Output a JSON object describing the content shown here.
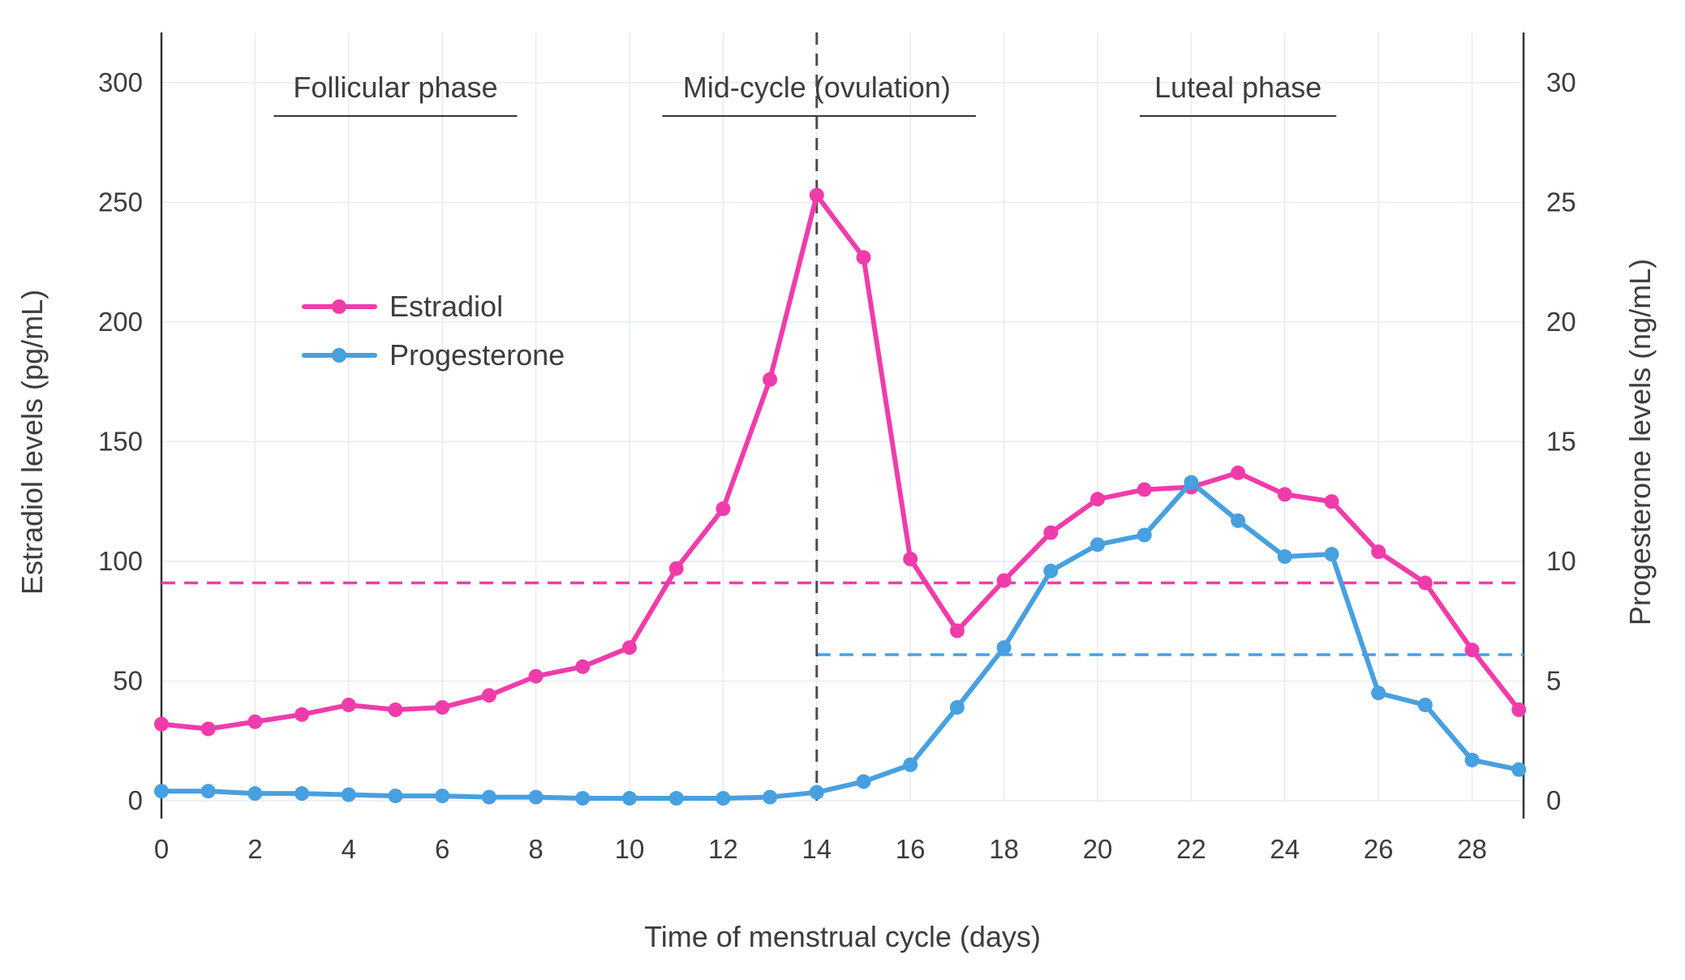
{
  "chart_data": {
    "type": "line",
    "title": "",
    "xlabel": "Time of menstrual cycle (days)",
    "ylabel_left": "Estradiol levels (pg/mL)",
    "ylabel_right": "Progesterone levels (ng/mL)",
    "x": [
      0,
      1,
      2,
      3,
      4,
      5,
      6,
      7,
      8,
      9,
      10,
      11,
      12,
      13,
      14,
      15,
      16,
      17,
      18,
      19,
      20,
      21,
      22,
      23,
      24,
      25,
      26,
      27,
      28,
      29
    ],
    "xlim": [
      0,
      29.1
    ],
    "x_ticks": [
      0,
      2,
      4,
      6,
      8,
      10,
      12,
      14,
      16,
      18,
      20,
      22,
      24,
      26,
      28
    ],
    "ylim_left": [
      0,
      321
    ],
    "y_ticks_left": [
      0,
      50,
      100,
      150,
      200,
      250,
      300
    ],
    "ylim_right": [
      0,
      32.1
    ],
    "y_ticks_right": [
      0,
      5,
      10,
      15,
      20,
      25,
      30
    ],
    "grid": true,
    "legend_position": "upper-left-inside",
    "series": [
      {
        "name": "Estradiol",
        "axis": "left",
        "color": "#f03caa",
        "values": [
          32,
          30,
          33,
          36,
          40,
          38,
          39,
          44,
          52,
          56,
          64,
          97,
          122,
          176,
          253,
          227,
          101,
          71,
          92,
          112,
          126,
          130,
          131,
          137,
          128,
          125,
          104,
          91,
          63,
          38
        ]
      },
      {
        "name": "Progesterone",
        "axis": "right",
        "color": "#47a0e0",
        "values": [
          0.4,
          0.4,
          0.3,
          0.3,
          0.25,
          0.2,
          0.2,
          0.15,
          0.15,
          0.1,
          0.1,
          0.1,
          0.1,
          0.15,
          0.35,
          0.8,
          1.5,
          3.9,
          6.4,
          9.6,
          10.7,
          11.1,
          13.3,
          11.7,
          10.2,
          10.3,
          4.5,
          4.0,
          1.7,
          1.3
        ]
      }
    ],
    "reference_lines": [
      {
        "name": "estradiol-mean-dashed-line",
        "orientation": "horizontal",
        "axis": "left",
        "value": 91,
        "x_start": 0,
        "x_end": 29.1,
        "color": "#f03caa",
        "style": "dashed"
      },
      {
        "name": "progesterone-mean-dashed-line",
        "orientation": "horizontal",
        "axis": "right",
        "value": 6.1,
        "x_start": 14,
        "x_end": 29.1,
        "color": "#47a0e0",
        "style": "dashed"
      },
      {
        "name": "ovulation-day-dashed-line",
        "orientation": "vertical",
        "value": 14,
        "color": "#4d4d4d",
        "style": "dashed"
      }
    ],
    "annotations": [
      {
        "label": "Follicular phase",
        "x_center": 5.0,
        "underline_x_start": 2.4,
        "underline_x_end": 7.6
      },
      {
        "label": "Mid-cycle (ovulation)",
        "x_center": 14.0,
        "underline_x_start": 10.7,
        "underline_x_end": 17.4
      },
      {
        "label": "Luteal phase",
        "x_center": 23.0,
        "underline_x_start": 20.9,
        "underline_x_end": 25.1
      }
    ],
    "palette": {
      "grid": "#e9ecf4",
      "spine": "#333333",
      "text": "#3d3d3d",
      "annotation_line": "#3d3d3d"
    }
  }
}
